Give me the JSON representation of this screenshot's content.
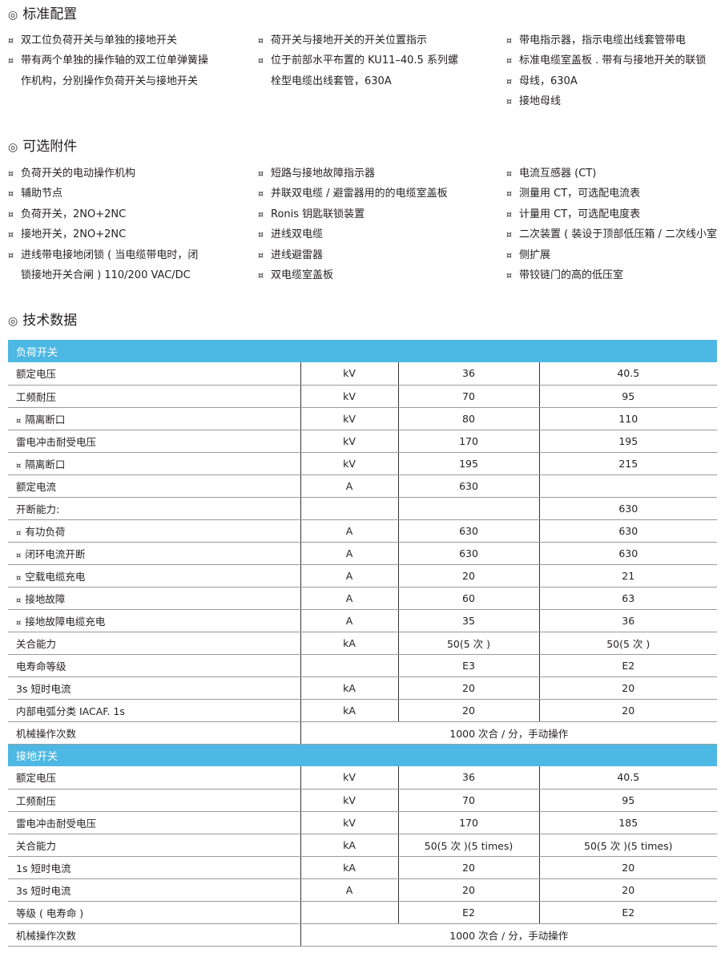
{
  "standard": {
    "title": "标准配置",
    "columns": [
      [
        [
          "双工位负荷开关与单独的接地开关"
        ],
        [
          "带有两个单独的操作轴的双工位单弹簧操",
          "作机构，分别操作负荷开关与接地开关"
        ]
      ],
      [
        [
          "荷开关与接地开关的开关位置指示"
        ],
        [
          "位于前部水平布置的 KU11–40.5 系列螺",
          "栓型电缆出线套管，630A"
        ]
      ],
      [
        [
          "带电指示器，指示电缆出线套管带电"
        ],
        [
          "标准电缆室盖板 . 带有与接地开关的联锁"
        ],
        [
          "母线，630A"
        ],
        [
          "接地母线"
        ]
      ]
    ]
  },
  "optional": {
    "title": "可选附件",
    "columns": [
      [
        [
          "负荷开关的电动操作机构"
        ],
        [
          "辅助节点"
        ],
        [
          "负荷开关，2NO+2NC"
        ],
        [
          "接地开关，2NO+2NC"
        ],
        [
          "进线带电接地闭锁 ( 当电缆带电时，闭",
          "锁接地开关合闸 ) 110/200 VAC/DC"
        ]
      ],
      [
        [
          "短路与接地故障指示器"
        ],
        [
          "并联双电缆 / 避雷器用的的电缆室盖板"
        ],
        [
          "Ronis 钥匙联锁装置"
        ],
        [
          "进线双电缆"
        ],
        [
          "进线避雷器"
        ],
        [
          "双电缆室盖板"
        ]
      ],
      [
        [
          "电流互感器 (CT)"
        ],
        [
          "测量用 CT，可选配电流表"
        ],
        [
          "计量用 CT，可选配电度表"
        ],
        [
          "二次装置 ( 装设于顶部低压箱 / 二次线小室 )"
        ],
        [
          "侧扩展"
        ],
        [
          "带铰链门的高的低压室"
        ]
      ]
    ]
  },
  "technical": {
    "title": "技术数据",
    "header_color": "#4db8e3",
    "groups": [
      {
        "name": "负荷开关",
        "rows": [
          {
            "label": "额定电压",
            "sub": false,
            "unit": "kV",
            "v1": "36",
            "v2": "40.5"
          },
          {
            "label": "工频耐压",
            "sub": false,
            "unit": "kV",
            "v1": "70",
            "v2": "95"
          },
          {
            "label": "隔离断口",
            "sub": true,
            "unit": "kV",
            "v1": "80",
            "v2": "110"
          },
          {
            "label": "雷电冲击耐受电压",
            "sub": false,
            "unit": "kV",
            "v1": "170",
            "v2": "195"
          },
          {
            "label": "隔离断口",
            "sub": true,
            "unit": "kV",
            "v1": "195",
            "v2": "215"
          },
          {
            "label": "额定电流",
            "sub": false,
            "unit": "A",
            "v1": "630",
            "v2": ""
          },
          {
            "label": "开断能力:",
            "sub": false,
            "unit": "",
            "v1": "",
            "v2": "630"
          },
          {
            "label": "有功负荷",
            "sub": true,
            "unit": "A",
            "v1": "630",
            "v2": "630"
          },
          {
            "label": "闭环电流开断",
            "sub": true,
            "unit": "A",
            "v1": "630",
            "v2": "630"
          },
          {
            "label": "空载电缆充电",
            "sub": true,
            "unit": "A",
            "v1": "20",
            "v2": "21"
          },
          {
            "label": "接地故障",
            "sub": true,
            "unit": "A",
            "v1": "60",
            "v2": "63"
          },
          {
            "label": "接地故障电缆充电",
            "sub": true,
            "unit": "A",
            "v1": "35",
            "v2": "36"
          },
          {
            "label": "关合能力",
            "sub": false,
            "unit": "kA",
            "v1": "50(5 次 )",
            "v2": "50(5 次 )"
          },
          {
            "label": "电寿命等级",
            "sub": false,
            "unit": "",
            "v1": "E3",
            "v2": "E2"
          },
          {
            "label": "3s 短时电流",
            "sub": false,
            "unit": "kA",
            "v1": "20",
            "v2": "20"
          },
          {
            "label": "内部电弧分类 IACAF. 1s",
            "sub": false,
            "unit": "kA",
            "v1": "20",
            "v2": "20"
          },
          {
            "label": "机械操作次数",
            "sub": false,
            "merged": "1000 次合 / 分，手动操作"
          }
        ]
      },
      {
        "name": "接地开关",
        "rows": [
          {
            "label": "额定电压",
            "sub": false,
            "unit": "kV",
            "v1": "36",
            "v2": "40.5"
          },
          {
            "label": "工频耐压",
            "sub": false,
            "unit": "kV",
            "v1": "70",
            "v2": "95"
          },
          {
            "label": "雷电冲击耐受电压",
            "sub": false,
            "unit": "kV",
            "v1": "170",
            "v2": "185"
          },
          {
            "label": "关合能力",
            "sub": false,
            "unit": "kA",
            "v1": "50(5 次 )(5 times)",
            "v2": "50(5 次 )(5 times)"
          },
          {
            "label": "1s 短时电流",
            "sub": false,
            "unit": "kA",
            "v1": "20",
            "v2": "20"
          },
          {
            "label": "3s 短时电流",
            "sub": false,
            "unit": "A",
            "v1": "20",
            "v2": "20"
          },
          {
            "label": "等级 ( 电寿命 )",
            "sub": false,
            "unit": "",
            "v1": "E2",
            "v2": "E2"
          },
          {
            "label": "机械操作次数",
            "sub": false,
            "merged": "1000 次合 / 分，手动操作"
          }
        ]
      }
    ]
  }
}
